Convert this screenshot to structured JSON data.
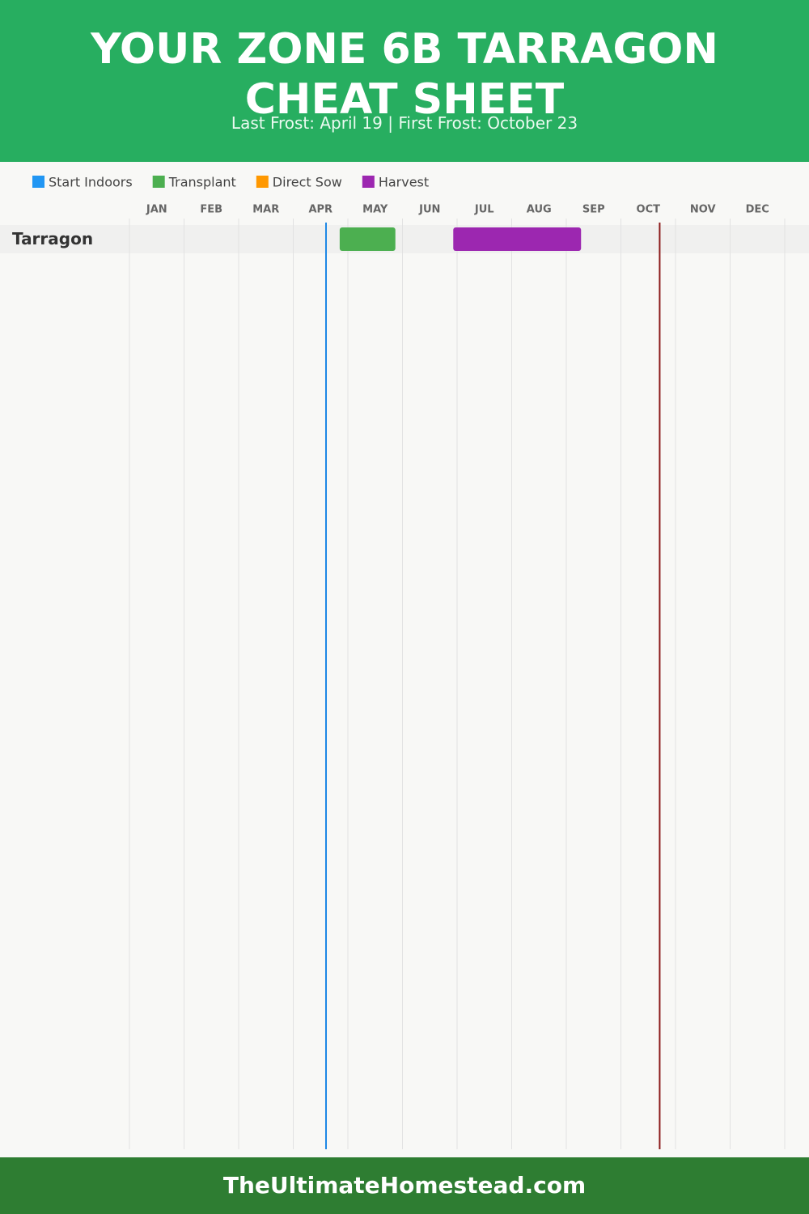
{
  "chart_data": {
    "type": "gantt",
    "title": "YOUR ZONE 6B TARRAGON CHEAT SHEET",
    "subtitle": "Last Frost: April 19 | First Frost: October 23",
    "categories": [
      "Tarragon"
    ],
    "series": [
      {
        "name": "Start Indoors",
        "color": "#2196f3",
        "values": [
          null
        ]
      },
      {
        "name": "Transplant",
        "color": "#4caf50",
        "values": [
          [
            3.85,
            4.87
          ]
        ]
      },
      {
        "name": "Direct Sow",
        "color": "#ff9800",
        "values": [
          null
        ]
      },
      {
        "name": "Harvest",
        "color": "#9c27b0",
        "values": [
          [
            5.93,
            8.27
          ]
        ]
      }
    ],
    "xlim": [
      0,
      12
    ],
    "xticks": [
      {
        "value": 0,
        "label": "JAN"
      },
      {
        "value": 1,
        "label": "FEB"
      },
      {
        "value": 2,
        "label": "MAR"
      },
      {
        "value": 3,
        "label": "APR"
      },
      {
        "value": 4,
        "label": "MAY"
      },
      {
        "value": 5,
        "label": "JUN"
      },
      {
        "value": 6,
        "label": "JUL"
      },
      {
        "value": 7,
        "label": "AUG"
      },
      {
        "value": 8,
        "label": "SEP"
      },
      {
        "value": 9,
        "label": "OCT"
      },
      {
        "value": 10,
        "label": "NOV"
      },
      {
        "value": 11,
        "label": "DEC"
      }
    ],
    "grid": true,
    "frost_lines": [
      {
        "value": 3.6,
        "color": "#1e88e5"
      },
      {
        "value": 9.71,
        "color": "#8b1a1a"
      }
    ]
  },
  "footer": "TheUltimateHomestead.com"
}
